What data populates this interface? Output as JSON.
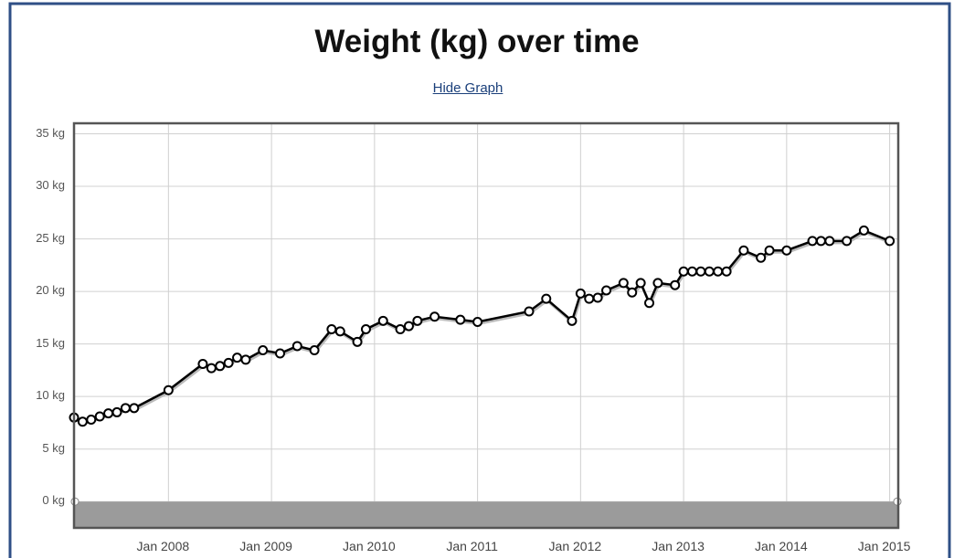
{
  "link": "Hide Graph",
  "chart_data": {
    "type": "line",
    "title": "Weight (kg) over time",
    "color": "#000000",
    "x": [
      "2007-02",
      "2007-03",
      "2007-04",
      "2007-05",
      "2007-06",
      "2007-07",
      "2007-08",
      "2007-09",
      "2008-01",
      "2008-05",
      "2008-06",
      "2008-07",
      "2008-08",
      "2008-09",
      "2008-10",
      "2008-12",
      "2009-02",
      "2009-04",
      "2009-06",
      "2009-08",
      "2009-09",
      "2009-11",
      "2009-12",
      "2010-02",
      "2010-04",
      "2010-05",
      "2010-06",
      "2010-08",
      "2010-11",
      "2011-01",
      "2011-07",
      "2011-09",
      "2011-12",
      "2012-01",
      "2012-02",
      "2012-03",
      "2012-04",
      "2012-06",
      "2012-07",
      "2012-08",
      "2012-09",
      "2012-10",
      "2012-12",
      "2013-01",
      "2013-02",
      "2013-03",
      "2013-04",
      "2013-05",
      "2013-06",
      "2013-08",
      "2013-10",
      "2013-11",
      "2014-01",
      "2014-04",
      "2014-05",
      "2014-06",
      "2014-08",
      "2014-10",
      "2015-01"
    ],
    "values": [
      8.0,
      7.6,
      7.8,
      8.1,
      8.4,
      8.5,
      8.9,
      8.9,
      10.6,
      13.1,
      12.7,
      12.9,
      13.2,
      13.7,
      13.5,
      14.4,
      14.1,
      14.8,
      14.4,
      16.4,
      16.2,
      15.2,
      16.4,
      17.2,
      16.4,
      16.7,
      17.2,
      17.6,
      17.3,
      17.1,
      18.1,
      19.3,
      17.2,
      19.8,
      19.3,
      19.4,
      20.1,
      20.8,
      19.9,
      20.8,
      18.9,
      20.8,
      20.6,
      21.9,
      21.9,
      21.9,
      21.9,
      21.9,
      21.9,
      23.9,
      23.2,
      23.9,
      23.9,
      24.8,
      24.8,
      24.8,
      24.8,
      25.8,
      24.8
    ],
    "xlim": [
      "2007-02",
      "2015-02"
    ],
    "xticks": [
      {
        "value": "2008-01",
        "label": "Jan 2008"
      },
      {
        "value": "2009-01",
        "label": "Jan 2009"
      },
      {
        "value": "2010-01",
        "label": "Jan 2010"
      },
      {
        "value": "2011-01",
        "label": "Jan 2011"
      },
      {
        "value": "2012-01",
        "label": "Jan 2012"
      },
      {
        "value": "2013-01",
        "label": "Jan 2013"
      },
      {
        "value": "2014-01",
        "label": "Jan 2014"
      },
      {
        "value": "2015-01",
        "label": "Jan 2015"
      }
    ],
    "ylim": [
      -2.5,
      36
    ],
    "yticks": [
      {
        "value": 0,
        "label": "0 kg"
      },
      {
        "value": 5,
        "label": "5 kg"
      },
      {
        "value": 10,
        "label": "10 kg"
      },
      {
        "value": 15,
        "label": "15 kg"
      },
      {
        "value": 20,
        "label": "20 kg"
      },
      {
        "value": 25,
        "label": "25 kg"
      },
      {
        "value": 30,
        "label": "30 kg"
      },
      {
        "value": 35,
        "label": "35 kg"
      }
    ],
    "grid": true
  }
}
